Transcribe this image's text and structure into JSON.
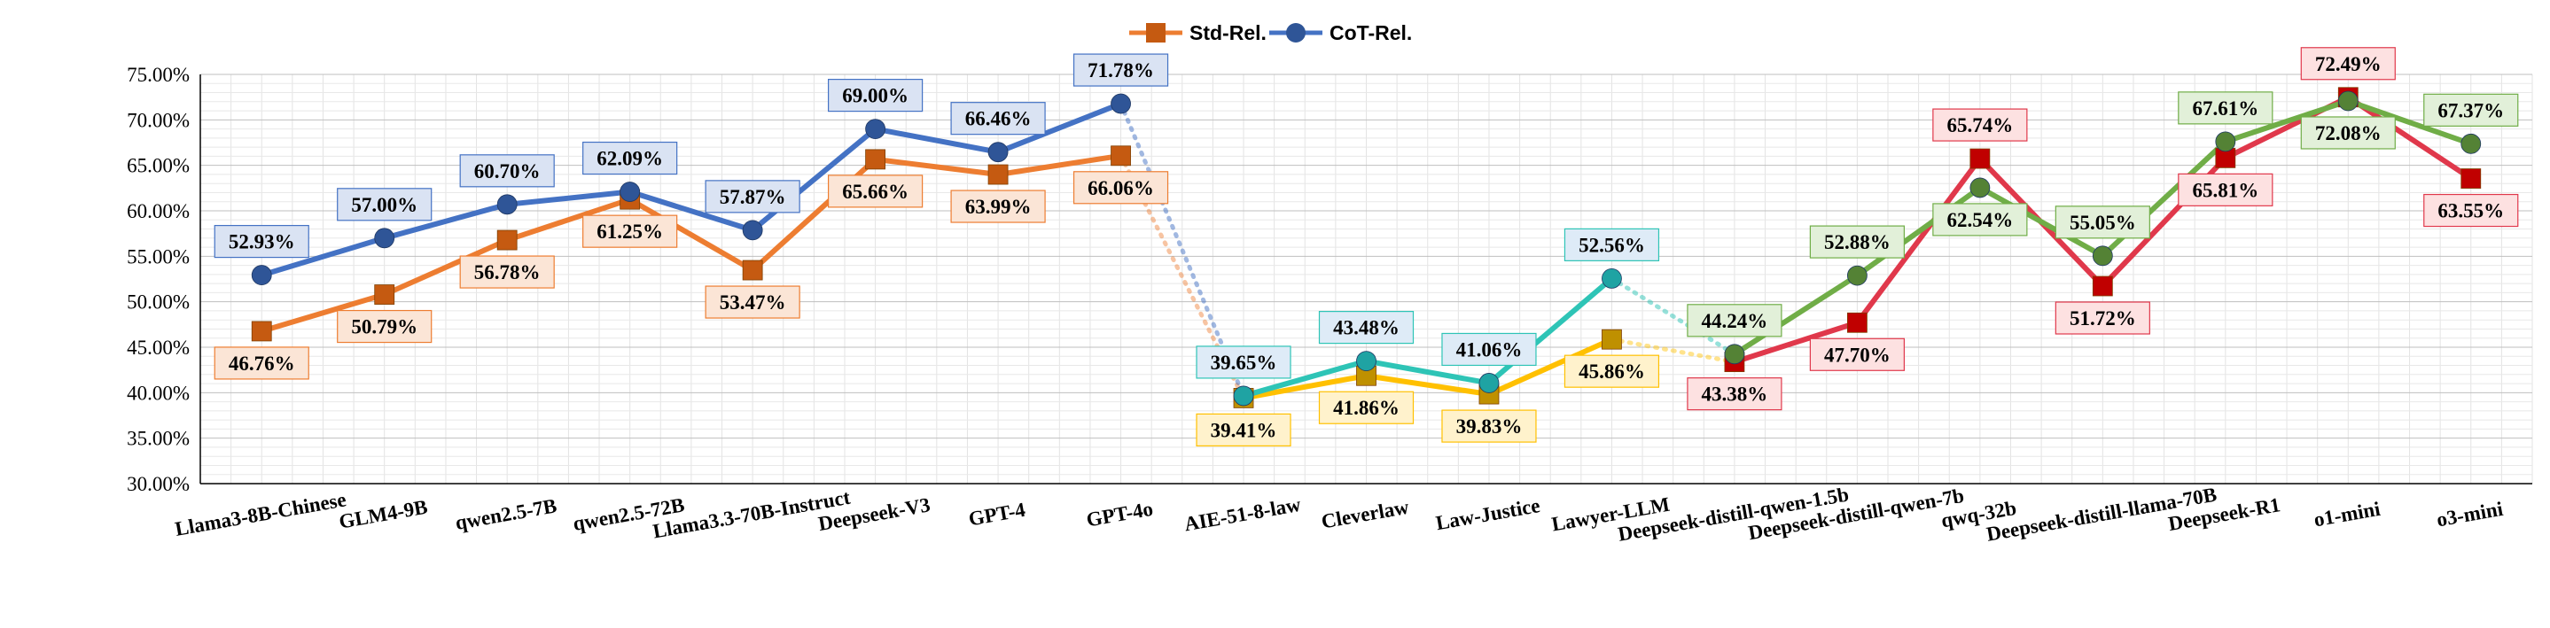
{
  "chart_data": {
    "type": "line",
    "categories": [
      "Llama3-8B-Chinese",
      "GLM4-9B",
      "qwen2.5-7B",
      "qwen2.5-72B",
      "Llama3.3-70B-Instruct",
      "Deepseek-V3",
      "GPT-4",
      "GPT-4o",
      "AIE-51-8-law",
      "Cleverlaw",
      "Law-Justice",
      "Lawyer-LLM",
      "Deepseek-distill-qwen-1.5b",
      "Deepseek-distill-qwen-7b",
      "qwq-32b",
      "Deepseek-distill-llama-70B",
      "Deepseek-R1",
      "o1-mini",
      "o3-mini"
    ],
    "series": [
      {
        "name": "Std-Rel.",
        "values": [
          46.76,
          50.79,
          56.78,
          61.25,
          53.47,
          65.66,
          63.99,
          66.06,
          39.41,
          41.86,
          39.83,
          45.86,
          43.38,
          47.7,
          65.74,
          51.72,
          65.81,
          72.49,
          63.55
        ]
      },
      {
        "name": "CoT-Rel.",
        "values": [
          52.93,
          57.0,
          60.7,
          62.09,
          57.87,
          69.0,
          66.46,
          71.78,
          39.65,
          43.48,
          41.06,
          52.56,
          44.24,
          52.88,
          62.54,
          55.05,
          67.61,
          72.08,
          67.37
        ]
      }
    ],
    "labels": {
      "std": [
        "46.76%",
        "50.79%",
        "56.78%",
        "61.25%",
        "53.47%",
        "65.66%",
        "63.99%",
        "66.06%",
        "39.41%",
        "41.86%",
        "39.83%",
        "45.86%",
        "43.38%",
        "47.70%",
        "65.74%",
        "51.72%",
        "65.81%",
        "72.49%",
        "63.55%"
      ],
      "cot": [
        "52.93%",
        "57.00%",
        "60.70%",
        "62.09%",
        "57.87%",
        "69.00%",
        "66.46%",
        "71.78%",
        "39.65%",
        "43.48%",
        "41.06%",
        "52.56%",
        "44.24%",
        "52.88%",
        "62.54%",
        "55.05%",
        "67.61%",
        "72.08%",
        "67.37%"
      ]
    },
    "yticks": [
      "30.00%",
      "35.00%",
      "40.00%",
      "45.00%",
      "50.00%",
      "55.00%",
      "60.00%",
      "65.00%",
      "70.00%",
      "75.00%"
    ],
    "ylim": [
      30,
      75
    ],
    "grid": true,
    "legend": "top-center",
    "groups": [
      {
        "name": "general",
        "range": [
          0,
          7
        ],
        "std_color": "#ED7D31",
        "cot_color": "#4472C4",
        "std_marker": "#C55A11",
        "cot_marker": "#2F5597",
        "std_label_bg": "#FBE5D6",
        "cot_label_bg": "#DAE3F3"
      },
      {
        "name": "legal",
        "range": [
          8,
          11
        ],
        "std_color": "#FFC000",
        "cot_color": "#2EC4B6",
        "std_marker": "#BF9000",
        "cot_marker": "#1FA3A3",
        "std_label_bg": "#FFF2CC",
        "cot_label_bg": "#DEEBF7"
      },
      {
        "name": "reasoning",
        "range": [
          12,
          18
        ],
        "std_color": "#E0384B",
        "cot_color": "#70AD47",
        "std_marker": "#C00000",
        "cot_marker": "#548235",
        "std_label_bg": "#FDE1E1",
        "cot_label_bg": "#E2F0D9"
      }
    ]
  }
}
